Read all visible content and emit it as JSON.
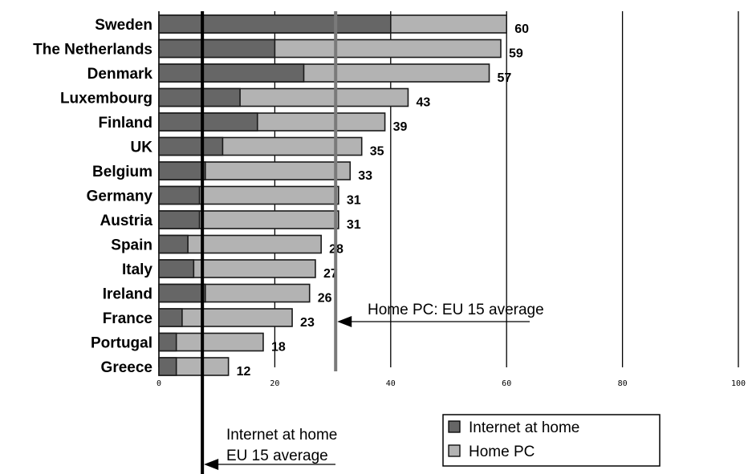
{
  "chart_data": {
    "type": "bar",
    "orientation": "horizontal",
    "categories": [
      "Sweden",
      "The Netherlands",
      "Denmark",
      "Luxembourg",
      "Finland",
      "UK",
      "Belgium",
      "Germany",
      "Austria",
      "Spain",
      "Italy",
      "Ireland",
      "France",
      "Portugal",
      "Greece"
    ],
    "series": [
      {
        "name": "Internet at home",
        "color": "#666666",
        "values": [
          40,
          20,
          25,
          14,
          17,
          11,
          8,
          7,
          7,
          5,
          6,
          8,
          4,
          3,
          3
        ]
      },
      {
        "name": "Home PC",
        "color": "#b3b3b3",
        "values": [
          60,
          59,
          57,
          43,
          39,
          35,
          33,
          31,
          31,
          28,
          27,
          26,
          23,
          18,
          12
        ]
      }
    ],
    "data_labels": [
      "60",
      "59",
      "57",
      "43",
      "39",
      "35",
      "33",
      "31",
      "31",
      "28",
      "27",
      "26",
      "23",
      "18",
      "12"
    ],
    "x_ticks": [
      "0",
      "20",
      "40",
      "60",
      "80",
      "100"
    ],
    "xlim": [
      0,
      100
    ],
    "grid": true,
    "reference_lines": [
      {
        "value": 30.5,
        "label": "Home PC: EU 15 average"
      },
      {
        "value": 7.5,
        "label_lines": [
          "Internet at home",
          "EU 15 average"
        ]
      }
    ],
    "legend": {
      "position": "bottom-right",
      "entries": [
        "Internet at home",
        "Home PC"
      ]
    }
  }
}
